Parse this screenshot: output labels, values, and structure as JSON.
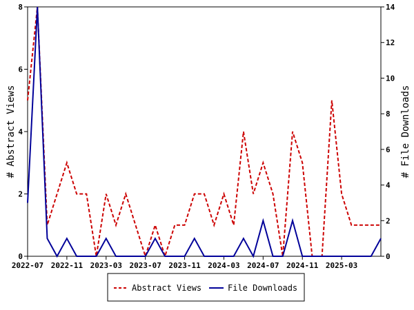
{
  "chart_data": {
    "type": "line",
    "x": [
      "2022-07",
      "2022-08",
      "2022-09",
      "2022-10",
      "2022-11",
      "2022-12",
      "2023-01",
      "2023-02",
      "2023-03",
      "2023-04",
      "2023-05",
      "2023-06",
      "2023-07",
      "2023-08",
      "2023-09",
      "2023-10",
      "2023-11",
      "2023-12",
      "2024-01",
      "2024-02",
      "2024-03",
      "2024-04",
      "2024-05",
      "2024-06",
      "2024-07",
      "2024-08",
      "2024-09",
      "2024-10",
      "2024-11",
      "2024-12",
      "2025-01",
      "2025-02",
      "2025-03",
      "2025-04",
      "2025-05",
      "2025-06",
      "2025-07"
    ],
    "x_ticks": [
      "2022-07",
      "2022-11",
      "2023-03",
      "2023-07",
      "2023-11",
      "2024-03",
      "2024-07",
      "2024-11",
      "2025-03"
    ],
    "y_left": {
      "label": "# Abstract Views",
      "ylim": [
        0,
        8
      ],
      "ticks": [
        "0",
        "2",
        "4",
        "6",
        "8"
      ]
    },
    "y_right": {
      "label": "# File Downloads",
      "ylim": [
        0,
        14
      ],
      "ticks": [
        "0",
        "2",
        "4",
        "6",
        "8",
        "10",
        "12",
        "14"
      ]
    },
    "series": [
      {
        "name": "Abstract Views",
        "axis": "left",
        "color": "#cc0000",
        "style": "dashed",
        "values": [
          5,
          8,
          1,
          2,
          3,
          2,
          2,
          0,
          2,
          1,
          2,
          1,
          0,
          1,
          0,
          1,
          1,
          2,
          2,
          1,
          2,
          1,
          4,
          2,
          3,
          2,
          0,
          4,
          3,
          0,
          0,
          5,
          2,
          1,
          1,
          1,
          1
        ]
      },
      {
        "name": "File Downloads",
        "axis": "right",
        "color": "#000099",
        "style": "solid",
        "values": [
          3,
          14,
          1,
          0,
          1,
          0,
          0,
          0,
          1,
          0,
          0,
          0,
          0,
          1,
          0,
          0,
          0,
          1,
          0,
          0,
          0,
          0,
          1,
          0,
          2,
          0,
          0,
          2,
          0,
          0,
          0,
          0,
          0,
          0,
          0,
          0,
          1
        ]
      }
    ],
    "legend_position": "bottom-center",
    "grid": false
  }
}
